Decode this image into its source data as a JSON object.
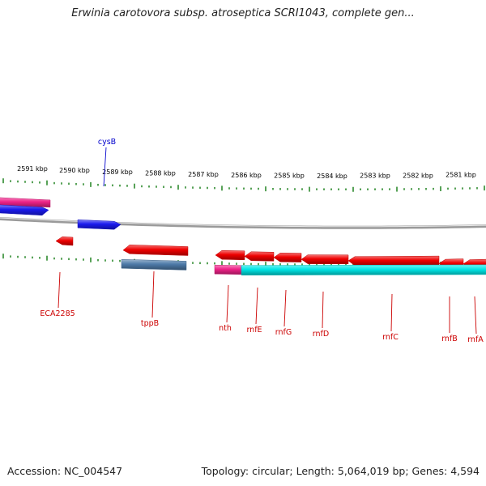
{
  "title": "Erwinia carotovora subsp. atroseptica SCRI1043, complete gen...",
  "colors": {
    "backbone": "#8c8c8c",
    "tick": "#2e8b2e",
    "label_red": "#cc0000",
    "label_blue": "#0000cc",
    "gene_red": "#ee0000",
    "gene_blue": "#1a1aee",
    "gene_pink": "#ee2288",
    "gene_cyan": "#00e5e5",
    "gene_steel": "#4d7aa8"
  },
  "positions": [
    {
      "label": "2591 kbp"
    },
    {
      "label": "2590 kbp"
    },
    {
      "label": "2589 kbp"
    },
    {
      "label": "2588 kbp"
    },
    {
      "label": "2587 kbp"
    },
    {
      "label": "2586 kbp"
    },
    {
      "label": "2585 kbp"
    },
    {
      "label": "2584 kbp"
    },
    {
      "label": "2583 kbp"
    },
    {
      "label": "2582 kbp"
    },
    {
      "label": "2581 kbp"
    }
  ],
  "gene_labels": [
    {
      "name": "cysB",
      "color": "#0000cc"
    },
    {
      "name": "ECA2285",
      "color": "#cc0000"
    },
    {
      "name": "tppB",
      "color": "#cc0000"
    },
    {
      "name": "nth",
      "color": "#cc0000"
    },
    {
      "name": "rnfE",
      "color": "#cc0000"
    },
    {
      "name": "rnfG",
      "color": "#cc0000"
    },
    {
      "name": "rnfD",
      "color": "#cc0000"
    },
    {
      "name": "rnfC",
      "color": "#cc0000"
    },
    {
      "name": "rnfB",
      "color": "#cc0000"
    },
    {
      "name": "rnfA",
      "color": "#cc0000"
    }
  ],
  "footer": {
    "accession": "Accession: NC_004547",
    "summary": "Topology: circular; Length: 5,064,019 bp; Genes: 4,594"
  }
}
